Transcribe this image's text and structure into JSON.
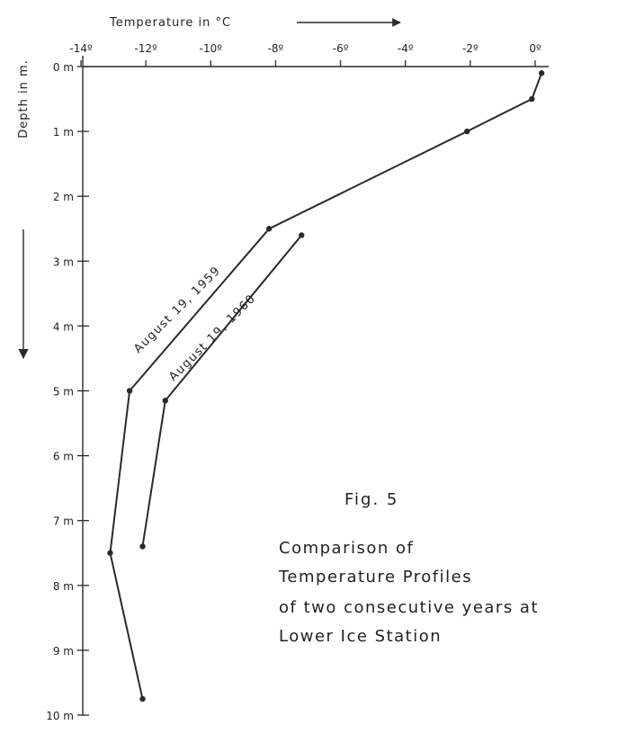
{
  "chart_data": {
    "type": "line",
    "xlabel": "Temperature in °C",
    "ylabel": "Depth in m.",
    "x_ticks": [
      "-14º",
      "-12º",
      "-10º",
      "-8º",
      "-6º",
      "-4º",
      "-2º",
      "0º"
    ],
    "y_ticks": [
      "0 m",
      "1 m",
      "2 m",
      "3 m",
      "4 m",
      "5 m",
      "6 m",
      "7 m",
      "8 m",
      "9 m",
      "10 m"
    ],
    "xlim": [
      -14,
      0.5
    ],
    "ylim": [
      0,
      10
    ],
    "x_axis_position": "top",
    "grid": false,
    "series": [
      {
        "name": "August 19, 1959",
        "points": [
          {
            "temp": 0.2,
            "depth": 0.1
          },
          {
            "temp": -0.1,
            "depth": 0.5
          },
          {
            "temp": -2.1,
            "depth": 1.0
          },
          {
            "temp": -8.2,
            "depth": 2.5
          },
          {
            "temp": -12.5,
            "depth": 5.0
          },
          {
            "temp": -13.1,
            "depth": 7.5
          },
          {
            "temp": -12.1,
            "depth": 9.75
          }
        ]
      },
      {
        "name": "August 19, 1960",
        "points": [
          {
            "temp": -7.2,
            "depth": 2.6
          },
          {
            "temp": -11.4,
            "depth": 5.15
          },
          {
            "temp": -12.1,
            "depth": 7.4
          }
        ]
      }
    ]
  },
  "figure": {
    "number": "Fig. 5",
    "caption_lines": [
      "Comparison of",
      "Temperature Profiles",
      "of two consecutive years at",
      "Lower Ice Station"
    ]
  },
  "colors": {
    "ink": "#2a2a2a",
    "background": "#ffffff"
  }
}
